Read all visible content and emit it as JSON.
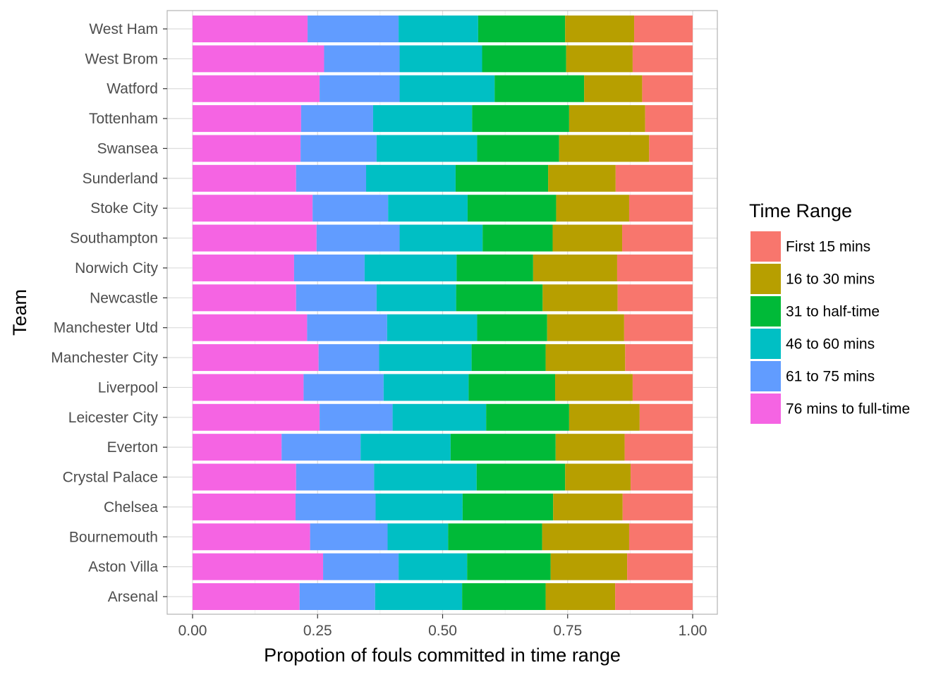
{
  "chart_data": {
    "type": "bar",
    "orientation": "horizontal",
    "stacked": true,
    "xlabel": "Propotion of fouls committed in time range",
    "ylabel": "Team",
    "xlim": [
      0,
      1
    ],
    "xticks": [
      "0.00",
      "0.25",
      "0.50",
      "0.75",
      "1.00"
    ],
    "grid": true,
    "legend": {
      "title": "Time Range",
      "position": "right",
      "entries": [
        "First 15 mins",
        "16 to 30 mins",
        "31 to half-time",
        "46 to 60 mins",
        "61 to 75 mins",
        "76 mins to full-time"
      ]
    },
    "categories": [
      "West Ham",
      "West Brom",
      "Watford",
      "Tottenham",
      "Swansea",
      "Sunderland",
      "Stoke City",
      "Southampton",
      "Norwich City",
      "Newcastle",
      "Manchester Utd",
      "Manchester City",
      "Liverpool",
      "Leicester City",
      "Everton",
      "Crystal Palace",
      "Chelsea",
      "Bournemouth",
      "Aston Villa",
      "Arsenal"
    ],
    "series": [
      {
        "name": "76 mins to full-time",
        "color": "#F564E3",
        "values": [
          0.23,
          0.263,
          0.254,
          0.217,
          0.216,
          0.207,
          0.24,
          0.248,
          0.203,
          0.207,
          0.229,
          0.252,
          0.222,
          0.254,
          0.178,
          0.207,
          0.206,
          0.235,
          0.261,
          0.214
        ]
      },
      {
        "name": "61 to 75 mins",
        "color": "#619CFF",
        "values": [
          0.182,
          0.151,
          0.16,
          0.144,
          0.152,
          0.14,
          0.151,
          0.166,
          0.141,
          0.161,
          0.16,
          0.121,
          0.16,
          0.146,
          0.158,
          0.156,
          0.16,
          0.155,
          0.151,
          0.151
        ]
      },
      {
        "name": "46 to 60 mins",
        "color": "#00BFC4",
        "values": [
          0.159,
          0.165,
          0.19,
          0.198,
          0.201,
          0.179,
          0.159,
          0.166,
          0.184,
          0.159,
          0.18,
          0.185,
          0.17,
          0.187,
          0.18,
          0.205,
          0.174,
          0.121,
          0.137,
          0.174
        ]
      },
      {
        "name": "31 to half-time",
        "color": "#00BA38",
        "values": [
          0.174,
          0.168,
          0.179,
          0.194,
          0.164,
          0.185,
          0.177,
          0.14,
          0.153,
          0.173,
          0.14,
          0.148,
          0.173,
          0.166,
          0.21,
          0.177,
          0.181,
          0.188,
          0.167,
          0.167
        ]
      },
      {
        "name": "16 to 30 mins",
        "color": "#B79F00",
        "values": [
          0.138,
          0.133,
          0.116,
          0.152,
          0.18,
          0.135,
          0.146,
          0.139,
          0.168,
          0.15,
          0.154,
          0.159,
          0.155,
          0.141,
          0.138,
          0.131,
          0.139,
          0.174,
          0.153,
          0.139
        ]
      },
      {
        "name": "First 15 mins",
        "color": "#F8766D",
        "values": [
          0.117,
          0.12,
          0.101,
          0.095,
          0.087,
          0.154,
          0.127,
          0.141,
          0.151,
          0.15,
          0.137,
          0.135,
          0.12,
          0.106,
          0.136,
          0.124,
          0.14,
          0.127,
          0.131,
          0.155
        ]
      }
    ]
  }
}
